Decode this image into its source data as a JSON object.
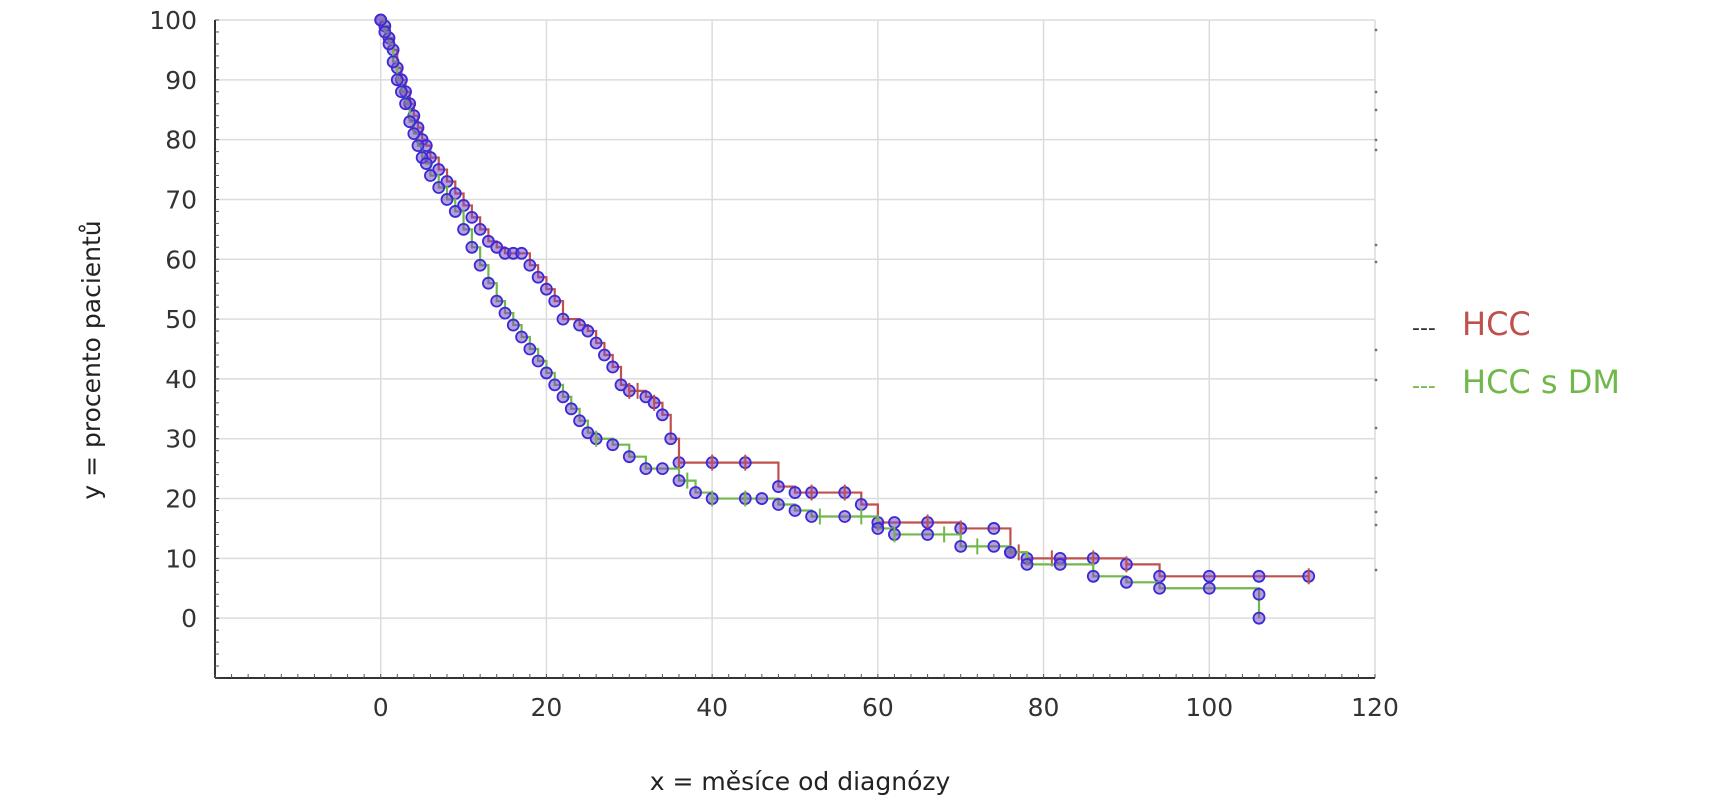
{
  "chart_data": {
    "type": "line",
    "subtype": "kaplan-meier survival curve",
    "xlabel": "x = měsíce od diagnózy",
    "ylabel": "y = procento pacientů",
    "xlim": [
      -20,
      120
    ],
    "ylim": [
      -10,
      100
    ],
    "x_ticks": [
      0,
      20,
      40,
      60,
      80,
      100,
      120
    ],
    "y_ticks": [
      0,
      10,
      20,
      30,
      40,
      50,
      60,
      70,
      80,
      90,
      100
    ],
    "grid": true,
    "legend_position": "right",
    "series": [
      {
        "name": "HCC",
        "color": "#c0504d",
        "legend_prefix": "---",
        "points": [
          [
            0,
            100
          ],
          [
            0.5,
            99
          ],
          [
            1,
            97
          ],
          [
            1.5,
            95
          ],
          [
            2,
            92
          ],
          [
            2.5,
            90
          ],
          [
            3,
            88
          ],
          [
            3.5,
            86
          ],
          [
            4,
            84
          ],
          [
            4.5,
            82
          ],
          [
            5,
            80
          ],
          [
            5.5,
            79
          ],
          [
            6,
            77
          ],
          [
            7,
            75
          ],
          [
            8,
            73
          ],
          [
            9,
            71
          ],
          [
            10,
            69
          ],
          [
            11,
            67
          ],
          [
            12,
            65
          ],
          [
            13,
            63
          ],
          [
            14,
            62
          ],
          [
            15,
            61
          ],
          [
            16,
            61
          ],
          [
            17,
            61
          ],
          [
            18,
            59
          ],
          [
            19,
            57
          ],
          [
            20,
            55
          ],
          [
            21,
            53
          ],
          [
            22,
            50
          ],
          [
            24,
            49
          ],
          [
            25,
            48
          ],
          [
            26,
            46
          ],
          [
            27,
            44
          ],
          [
            28,
            42
          ],
          [
            29,
            39
          ],
          [
            30,
            38
          ],
          [
            32,
            37
          ],
          [
            33,
            36
          ],
          [
            34,
            34
          ],
          [
            35,
            30
          ],
          [
            36,
            26
          ],
          [
            40,
            26
          ],
          [
            44,
            26
          ],
          [
            48,
            22
          ],
          [
            50,
            21
          ],
          [
            52,
            21
          ],
          [
            56,
            21
          ],
          [
            58,
            19
          ],
          [
            60,
            16
          ],
          [
            62,
            16
          ],
          [
            66,
            16
          ],
          [
            70,
            15
          ],
          [
            74,
            15
          ],
          [
            76,
            11
          ],
          [
            78,
            10
          ],
          [
            82,
            10
          ],
          [
            86,
            10
          ],
          [
            90,
            9
          ],
          [
            94,
            7
          ],
          [
            100,
            7
          ],
          [
            106,
            7
          ],
          [
            112,
            7
          ]
        ],
        "censor_x": [
          30,
          31,
          33,
          36,
          40,
          44,
          52,
          56,
          60,
          66,
          70,
          77,
          81,
          86,
          90,
          112
        ]
      },
      {
        "name": "HCC s DM",
        "color": "#70b84a",
        "legend_prefix": "---",
        "points": [
          [
            0,
            100
          ],
          [
            0.5,
            98
          ],
          [
            1,
            96
          ],
          [
            1.5,
            93
          ],
          [
            2,
            90
          ],
          [
            2.5,
            88
          ],
          [
            3,
            86
          ],
          [
            3.5,
            83
          ],
          [
            4,
            81
          ],
          [
            4.5,
            79
          ],
          [
            5,
            77
          ],
          [
            5.5,
            76
          ],
          [
            6,
            74
          ],
          [
            7,
            72
          ],
          [
            8,
            70
          ],
          [
            9,
            68
          ],
          [
            10,
            65
          ],
          [
            11,
            62
          ],
          [
            12,
            59
          ],
          [
            13,
            56
          ],
          [
            14,
            53
          ],
          [
            15,
            51
          ],
          [
            16,
            49
          ],
          [
            17,
            47
          ],
          [
            18,
            45
          ],
          [
            19,
            43
          ],
          [
            20,
            41
          ],
          [
            21,
            39
          ],
          [
            22,
            37
          ],
          [
            23,
            35
          ],
          [
            24,
            33
          ],
          [
            25,
            31
          ],
          [
            26,
            30
          ],
          [
            28,
            29
          ],
          [
            30,
            27
          ],
          [
            32,
            25
          ],
          [
            34,
            25
          ],
          [
            36,
            23
          ],
          [
            38,
            21
          ],
          [
            40,
            20
          ],
          [
            44,
            20
          ],
          [
            46,
            20
          ],
          [
            48,
            19
          ],
          [
            50,
            18
          ],
          [
            52,
            17
          ],
          [
            56,
            17
          ],
          [
            60,
            15
          ],
          [
            62,
            14
          ],
          [
            66,
            14
          ],
          [
            70,
            12
          ],
          [
            74,
            12
          ],
          [
            76,
            11
          ],
          [
            78,
            9
          ],
          [
            82,
            9
          ],
          [
            86,
            7
          ],
          [
            90,
            6
          ],
          [
            94,
            5
          ],
          [
            100,
            5
          ],
          [
            106,
            4
          ],
          [
            106,
            0
          ]
        ],
        "censor_x": [
          26,
          37,
          40,
          44,
          53,
          58,
          62,
          68,
          72
        ]
      }
    ]
  }
}
